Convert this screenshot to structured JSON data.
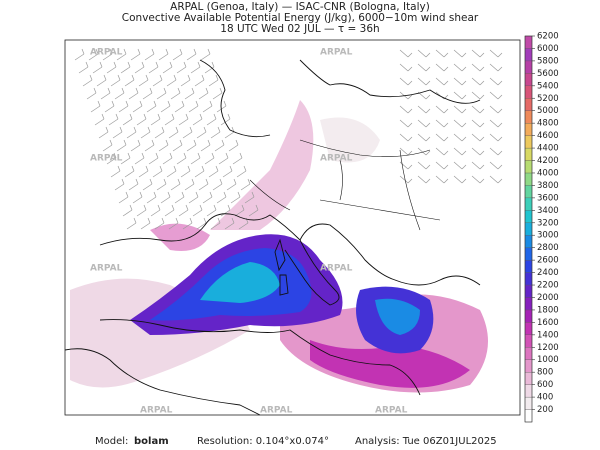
{
  "header": {
    "line1": "ARPAL (Genoa, Italy)  —  ISAC-CNR (Bologna, Italy)",
    "line2": "Convective Available Potential Energy (J/kg), 6000−10m wind shear",
    "line3": "18 UTC Wed 02 JUL  —  τ = 36h"
  },
  "watermark": "ARPAL",
  "colorbar": {
    "clim": [
      0,
      6200
    ],
    "ticks": [
      200,
      400,
      600,
      800,
      1000,
      1200,
      1400,
      1600,
      1800,
      2000,
      2200,
      2400,
      2600,
      2800,
      3000,
      3200,
      3400,
      3600,
      3800,
      4000,
      4200,
      4400,
      4600,
      4800,
      5000,
      5200,
      5400,
      5600,
      5800,
      6000,
      6200
    ],
    "colors": [
      "#ffffff",
      "#f3ecef",
      "#efd9e6",
      "#eab9d8",
      "#e497cb",
      "#dc74bf",
      "#d252b6",
      "#c233b3",
      "#a522b5",
      "#8520bd",
      "#6424c8",
      "#4432d6",
      "#2c44e4",
      "#2066e8",
      "#1a8be4",
      "#19aedc",
      "#1fc4cf",
      "#3ccfb9",
      "#62d59f",
      "#8fd986",
      "#b7dc72",
      "#d8d963",
      "#edc95d",
      "#f3ab5a",
      "#ef8a5a",
      "#e56a66",
      "#d85478",
      "#c8478f",
      "#b640a6",
      "#a23dba",
      "#c04aa8"
    ]
  },
  "footer": {
    "model_label": "Model:",
    "model": "bolam",
    "resolution": "Resolution: 0.104°x0.074°",
    "analysis": "Analysis: Tue 06Z01JUL2025"
  }
}
